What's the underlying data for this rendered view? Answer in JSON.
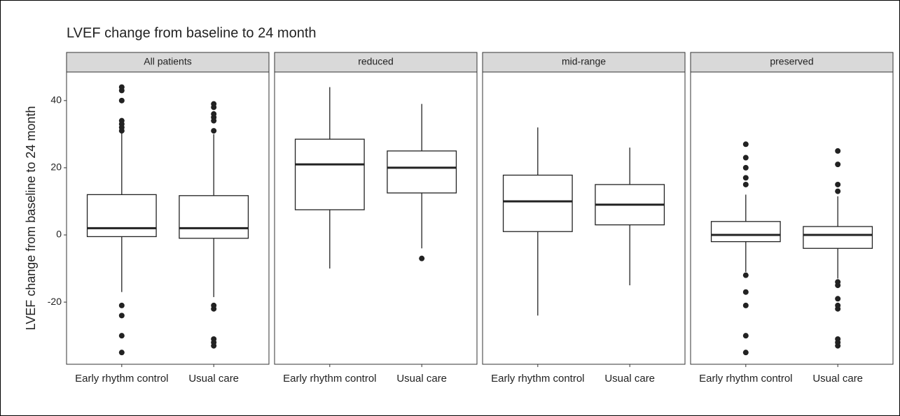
{
  "chart_data": {
    "type": "box",
    "title": "LVEF change from baseline to 24 month",
    "ylabel": "LVEF change from baseline to 24 month",
    "categories": [
      "Early rhythm control",
      "Usual care"
    ],
    "ylim": [
      -38.5,
      48.5
    ],
    "yticks": [
      -20,
      0,
      20,
      40
    ],
    "grid": false,
    "facets": [
      {
        "name": "All patients",
        "boxes": [
          {
            "whislo": -17,
            "q1": -0.5,
            "med": 2,
            "q3": 12,
            "whishi": 30.5,
            "fliers": [
              44,
              43,
              40,
              34,
              33,
              32,
              31,
              -21,
              -24,
              -30,
              -35
            ]
          },
          {
            "whislo": -18.5,
            "q1": -1,
            "med": 2,
            "q3": 11.7,
            "whishi": 30,
            "fliers": [
              39,
              38,
              36,
              35,
              34,
              31,
              -21,
              -22,
              -31,
              -32,
              -33
            ]
          }
        ]
      },
      {
        "name": "reduced",
        "boxes": [
          {
            "whislo": -10,
            "q1": 7.5,
            "med": 21,
            "q3": 28.5,
            "whishi": 44,
            "fliers": []
          },
          {
            "whislo": -4,
            "q1": 12.5,
            "med": 20,
            "q3": 25,
            "whishi": 39,
            "fliers": [
              -7
            ]
          }
        ]
      },
      {
        "name": "mid-range",
        "boxes": [
          {
            "whislo": -24,
            "q1": 1,
            "med": 10,
            "q3": 17.8,
            "whishi": 32,
            "fliers": []
          },
          {
            "whislo": -15,
            "q1": 3,
            "med": 9,
            "q3": 15,
            "whishi": 26,
            "fliers": []
          }
        ]
      },
      {
        "name": "preserved",
        "boxes": [
          {
            "whislo": -11,
            "q1": -2,
            "med": 0,
            "q3": 4,
            "whishi": 12,
            "fliers": [
              27,
              23,
              20,
              17,
              15,
              -12,
              -17,
              -21,
              -30,
              -35
            ]
          },
          {
            "whislo": -13,
            "q1": -4,
            "med": 0,
            "q3": 2.5,
            "whishi": 11.5,
            "fliers": [
              25,
              21,
              15,
              13,
              -14,
              -15,
              -19,
              -21,
              -22,
              -31,
              -32,
              -33
            ]
          }
        ]
      }
    ]
  }
}
